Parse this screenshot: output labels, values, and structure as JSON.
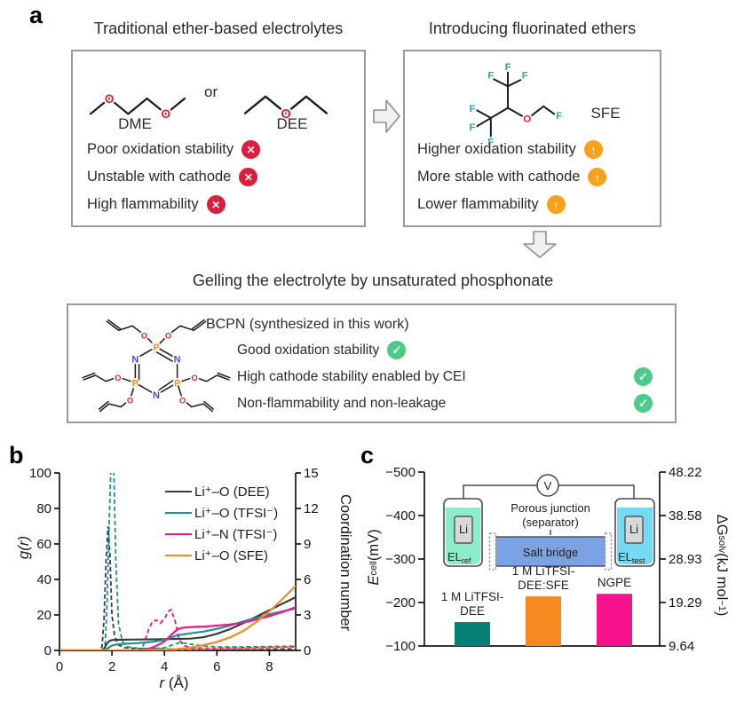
{
  "colors": {
    "box_border": "#9a9a9a",
    "red_icon": "#d91f3c",
    "orange_icon": "#f7a01b",
    "green_icon": "#4dc98a",
    "atom_o": "#ec1c24",
    "atom_f": "#2aa8a2",
    "atom_p": "#f68b1e",
    "atom_n": "#3a50dd",
    "line_dee": "#3b3b3b",
    "line_tfsi_o": "#18968d",
    "line_tfsi_n": "#f5128c",
    "line_sfe": "#f68b1f",
    "bar_teal": "#077e76",
    "bar_orange": "#f6891f",
    "bar_pink": "#f5128c",
    "liquid_ref": "#8becc9",
    "liquid_test": "#74d9f5",
    "salt_bridge": "#7ba2e3"
  },
  "icons": {
    "cross": "✕",
    "up": "↑",
    "check": "✓"
  },
  "panel_a": {
    "label": "a",
    "left_title": "Traditional ether-based electrolytes",
    "right_title": "Introducing fluorinated ethers",
    "bottom_title": "Gelling the electrolyte by unsaturated phosphonate",
    "or_text": "or",
    "mol_dme": "DME",
    "mol_dee": "DEE",
    "mol_sfe": "SFE",
    "bcpn_heading": "BCPN (synthesized in this work)",
    "left_features": [
      "Poor oxidation stability",
      "Unstable with cathode",
      "High flammability"
    ],
    "right_features": [
      "Higher oxidation stability",
      "More stable with cathode",
      "Lower flammability"
    ],
    "bottom_features": [
      "Good oxidation stability",
      "High cathode stability enabled by CEI",
      "Non-flammability and non-leakage"
    ],
    "atoms": {
      "O": "O",
      "F": "F",
      "P": "P",
      "N": "N"
    }
  },
  "panel_b": {
    "label": "b",
    "ylabel_left": "g(r)",
    "ylabel_right": "Coordination number",
    "xlabel_italic": "r",
    "xlabel_rest": " (Å)"
  },
  "panel_c": {
    "label": "c",
    "ylabel_left_base": "E",
    "ylabel_left_sub": "cell",
    "ylabel_left_rest": " (mV)",
    "ylabel_right_base": "ΔG",
    "ylabel_right_sub": "solv",
    "ylabel_right_rest1": " (kJ mol",
    "ylabel_right_sup": "−1",
    "ylabel_right_rest2": ")",
    "inset": {
      "voltmeter": "V",
      "electrode": "Li",
      "el_base": "EL",
      "el_ref_sub": "ref",
      "el_test_sub": "test",
      "salt_bridge": "Salt bridge",
      "porous_line1": "Porous junction",
      "porous_line2": "(separator)"
    }
  },
  "chart_data": [
    {
      "type": "line",
      "xlabel": "r (Å)",
      "ylabel_left": "g(r)",
      "ylabel_right": "Coordination number",
      "xlim": [
        0,
        9
      ],
      "ylim_left": [
        0,
        100
      ],
      "ylim_right": [
        0,
        15
      ],
      "xticks": [
        0,
        2,
        4,
        6,
        8
      ],
      "yticks_left": [
        0,
        20,
        40,
        60,
        80,
        100
      ],
      "yticks_right": [
        0,
        3,
        6,
        9,
        12,
        15
      ],
      "legend_note": "dashed curves = g(r), left axis; solid curves = coordination number, right axis",
      "legend": [
        {
          "label": "Li⁺–O (DEE)",
          "color": "#3b3b3b"
        },
        {
          "label": "Li⁺–O (TFSI⁻)",
          "color": "#18968d"
        },
        {
          "label": "Li⁺–N (TFSI⁻)",
          "color": "#f5128c"
        },
        {
          "label": "Li⁺–O (SFE)",
          "color": "#f68b1f"
        }
      ],
      "series": [
        {
          "name": "g(r) Li+-O (DEE)",
          "axis": "left",
          "style": "dashed",
          "color": "#3b3b3b",
          "points": [
            [
              0,
              0
            ],
            [
              1.5,
              0
            ],
            [
              1.62,
              2
            ],
            [
              1.7,
              18
            ],
            [
              1.78,
              52
            ],
            [
              1.85,
              70
            ],
            [
              1.92,
              55
            ],
            [
              2.0,
              20
            ],
            [
              2.1,
              8
            ],
            [
              2.25,
              3
            ],
            [
              2.5,
              1.5
            ],
            [
              3,
              1
            ],
            [
              4,
              0.8
            ],
            [
              5,
              0.7
            ],
            [
              6,
              0.7
            ],
            [
              7,
              0.7
            ],
            [
              8,
              0.7
            ],
            [
              9,
              0.7
            ]
          ]
        },
        {
          "name": "g(r) Li+-O (TFSI-)",
          "axis": "left",
          "style": "dashed",
          "color": "#18968d",
          "points": [
            [
              0,
              0
            ],
            [
              1.68,
              0
            ],
            [
              1.75,
              5
            ],
            [
              1.82,
              30
            ],
            [
              1.9,
              75
            ],
            [
              1.97,
              110
            ],
            [
              2.02,
              118
            ],
            [
              2.08,
              95
            ],
            [
              2.15,
              50
            ],
            [
              2.25,
              15
            ],
            [
              2.4,
              5
            ],
            [
              2.6,
              2
            ],
            [
              3,
              1.2
            ],
            [
              3.5,
              1
            ],
            [
              4,
              1.5
            ],
            [
              4.3,
              3
            ],
            [
              4.6,
              4.5
            ],
            [
              5,
              3.5
            ],
            [
              5.5,
              2.5
            ],
            [
              6,
              2
            ],
            [
              7,
              2
            ],
            [
              8,
              2.2
            ],
            [
              9,
              2.4
            ]
          ]
        },
        {
          "name": "g(r) Li+-N (TFSI-)",
          "axis": "left",
          "style": "dashed",
          "color": "#f5128c",
          "points": [
            [
              0,
              0
            ],
            [
              3.05,
              0
            ],
            [
              3.2,
              3
            ],
            [
              3.4,
              12
            ],
            [
              3.55,
              16.5
            ],
            [
              3.7,
              17
            ],
            [
              3.85,
              15.5
            ],
            [
              4.0,
              18
            ],
            [
              4.15,
              22
            ],
            [
              4.25,
              23
            ],
            [
              4.4,
              17
            ],
            [
              4.55,
              7
            ],
            [
              4.7,
              3
            ],
            [
              5,
              1.5
            ],
            [
              5.5,
              1.2
            ],
            [
              6,
              1.2
            ],
            [
              7,
              1.5
            ],
            [
              8,
              1.8
            ],
            [
              9,
              2
            ]
          ]
        },
        {
          "name": "g(r) Li+-O (SFE)",
          "axis": "left",
          "style": "dashed",
          "color": "#f68b1f",
          "points": [
            [
              0,
              0
            ],
            [
              2.5,
              0
            ],
            [
              3,
              0.2
            ],
            [
              4,
              0.4
            ],
            [
              5,
              0.6
            ],
            [
              6,
              0.9
            ],
            [
              7,
              1.1
            ],
            [
              8,
              1.3
            ],
            [
              9,
              1.6
            ]
          ]
        },
        {
          "name": "CN Li+-O (DEE)",
          "axis": "right",
          "style": "solid",
          "color": "#3b3b3b",
          "points": [
            [
              0,
              0
            ],
            [
              1.6,
              0
            ],
            [
              1.7,
              0.15
            ],
            [
              1.8,
              0.55
            ],
            [
              1.9,
              0.8
            ],
            [
              2.0,
              0.88
            ],
            [
              2.2,
              0.9
            ],
            [
              3,
              0.92
            ],
            [
              4,
              0.95
            ],
            [
              5,
              1.0
            ],
            [
              5.5,
              1.12
            ],
            [
              6,
              1.4
            ],
            [
              6.5,
              1.8
            ],
            [
              7,
              2.3
            ],
            [
              7.5,
              2.85
            ],
            [
              8,
              3.4
            ],
            [
              8.5,
              3.95
            ],
            [
              9,
              4.5
            ]
          ]
        },
        {
          "name": "CN Li+-O (TFSI-)",
          "axis": "right",
          "style": "solid",
          "color": "#18968d",
          "points": [
            [
              0,
              0
            ],
            [
              1.72,
              0
            ],
            [
              1.85,
              0.2
            ],
            [
              2.0,
              0.42
            ],
            [
              2.2,
              0.52
            ],
            [
              2.6,
              0.57
            ],
            [
              3,
              0.62
            ],
            [
              3.5,
              0.72
            ],
            [
              3.9,
              0.85
            ],
            [
              4.2,
              1.05
            ],
            [
              4.5,
              1.28
            ],
            [
              4.8,
              1.38
            ],
            [
              5,
              1.45
            ],
            [
              5.5,
              1.6
            ],
            [
              6,
              1.82
            ],
            [
              6.5,
              2.1
            ],
            [
              7,
              2.45
            ],
            [
              7.5,
              2.75
            ],
            [
              8,
              3.05
            ],
            [
              8.5,
              3.3
            ],
            [
              9,
              3.55
            ]
          ]
        },
        {
          "name": "CN Li+-N (TFSI-)",
          "axis": "right",
          "style": "solid",
          "color": "#f5128c",
          "points": [
            [
              0,
              0
            ],
            [
              3.0,
              0
            ],
            [
              3.3,
              0.08
            ],
            [
              3.6,
              0.3
            ],
            [
              3.9,
              0.62
            ],
            [
              4.1,
              0.95
            ],
            [
              4.3,
              1.4
            ],
            [
              4.5,
              1.8
            ],
            [
              4.7,
              1.92
            ],
            [
              5,
              1.98
            ],
            [
              5.5,
              2.02
            ],
            [
              6,
              2.1
            ],
            [
              6.5,
              2.2
            ],
            [
              7,
              2.35
            ],
            [
              7.5,
              2.6
            ],
            [
              8,
              2.9
            ],
            [
              8.5,
              3.25
            ],
            [
              9,
              3.65
            ]
          ]
        },
        {
          "name": "CN Li+-O (SFE)",
          "axis": "right",
          "style": "solid",
          "color": "#f68b1f",
          "points": [
            [
              0,
              0
            ],
            [
              3.2,
              0
            ],
            [
              4,
              0.06
            ],
            [
              4.5,
              0.12
            ],
            [
              5,
              0.25
            ],
            [
              5.5,
              0.45
            ],
            [
              6,
              0.72
            ],
            [
              6.5,
              1.1
            ],
            [
              7,
              1.65
            ],
            [
              7.5,
              2.4
            ],
            [
              8,
              3.3
            ],
            [
              8.5,
              4.35
            ],
            [
              9,
              5.45
            ]
          ]
        }
      ]
    },
    {
      "type": "bar",
      "ylabel_left": "E_cell (mV)",
      "ylabel_right": "ΔG_solv (kJ mol−1)",
      "ylim_bottom": -100,
      "ylim_top": -500,
      "yticks_left": [
        {
          "v": -500,
          "label": "−500"
        },
        {
          "v": -400,
          "label": "−400"
        },
        {
          "v": -300,
          "label": "−300"
        },
        {
          "v": -200,
          "label": "−200"
        },
        {
          "v": -100,
          "label": "−100"
        }
      ],
      "yticks_right": [
        "48.22",
        "38.58",
        "28.93",
        "19.29",
        "9.64"
      ],
      "bars": [
        {
          "label_lines": [
            "1 M LiTFSI-",
            "DEE"
          ],
          "value_mV": -155,
          "color": "#077e76"
        },
        {
          "label_lines": [
            "1 M LiTFSI-",
            "DEE:SFE"
          ],
          "value_mV": -214,
          "color": "#f6891f"
        },
        {
          "label_lines": [
            "NGPE"
          ],
          "value_mV": -220,
          "color": "#f5128c"
        }
      ]
    }
  ]
}
